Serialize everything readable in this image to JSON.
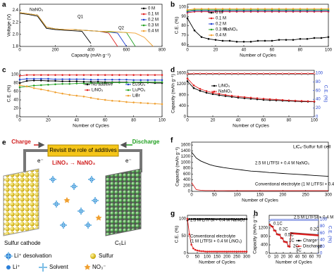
{
  "chart_data": [
    {
      "type": "line",
      "panel": "a",
      "xlabel": "Capacity (mAh g⁻¹)",
      "ylabel": "Voltage (V)",
      "x": [
        0,
        50,
        100,
        150,
        200,
        250,
        300,
        350,
        400,
        450,
        500,
        550,
        600,
        650,
        700,
        750,
        800
      ],
      "xlim": [
        0,
        800
      ],
      "xticks": [
        0,
        200,
        400,
        600,
        800
      ],
      "ylim": [
        1.8,
        2.5
      ],
      "yticks": [
        1.8,
        {
          "value": 2,
          "label": "2.0"
        },
        2.2,
        2.4
      ],
      "markers": false,
      "annotations": [
        "NaNO₃",
        "Q1",
        "Q2"
      ],
      "series": [
        {
          "name": "0 M",
          "color": "#000000",
          "values": [
            2.35,
            2.33,
            2.3,
            2.1,
            2.08,
            2.07,
            2.06,
            2.05,
            1.85,
            null,
            null,
            null,
            null,
            null,
            null,
            null,
            null
          ]
        },
        {
          "name": "0.1 M",
          "color": "#e02020",
          "values": [
            2.36,
            2.34,
            2.32,
            2.12,
            2.09,
            2.08,
            2.08,
            2.07,
            2.06,
            2.05,
            2.02,
            1.8,
            null,
            null,
            null,
            null,
            null
          ]
        },
        {
          "name": "0.2 M",
          "color": "#2040d0",
          "values": [
            2.36,
            2.34,
            2.32,
            2.12,
            2.09,
            2.08,
            2.08,
            2.07,
            2.06,
            2.05,
            2.04,
            2.02,
            1.8,
            null,
            null,
            null,
            null
          ]
        },
        {
          "name": "0.3 M",
          "color": "#20a020",
          "values": [
            2.36,
            2.34,
            2.32,
            2.12,
            2.09,
            2.08,
            2.08,
            2.07,
            2.06,
            2.05,
            2.04,
            2.04,
            2.03,
            1.8,
            null,
            null,
            null
          ]
        },
        {
          "name": "0.4 M",
          "color": "#f0a030",
          "values": [
            2.36,
            2.34,
            2.32,
            2.12,
            2.09,
            2.08,
            2.08,
            2.07,
            2.06,
            2.05,
            2.05,
            2.04,
            2.03,
            2.02,
            1.95,
            1.8,
            null
          ]
        }
      ]
    },
    {
      "type": "line",
      "panel": "b",
      "xlabel": "Number of Cycles",
      "ylabel": "C.E. (%)",
      "x": [
        0,
        5,
        10,
        15,
        20,
        25,
        30,
        35,
        40,
        45,
        50,
        55,
        60,
        65,
        70,
        75,
        80,
        85,
        90,
        95,
        100
      ],
      "xlim": [
        0,
        100
      ],
      "xticks": [
        0,
        20,
        40,
        60,
        80,
        100
      ],
      "ylim": [
        58,
        103
      ],
      "yticks": [
        60,
        70,
        80,
        90,
        100
      ],
      "markers": true,
      "annotations": [
        "NaNO₃"
      ],
      "series": [
        {
          "name": "0 M",
          "color": "#000000",
          "values": [
            88,
            75,
            68,
            66,
            65,
            64,
            64,
            63,
            63,
            63,
            64,
            64,
            64,
            65,
            65,
            65,
            66,
            66,
            67,
            67,
            68
          ]
        },
        {
          "name": "0.1 M",
          "color": "#e02020",
          "values": [
            94,
            95,
            95,
            95,
            95,
            95,
            95,
            95,
            95,
            95,
            95,
            95,
            95,
            95,
            95,
            95,
            95,
            95,
            95,
            95,
            95
          ]
        },
        {
          "name": "0.2 M",
          "color": "#2040d0",
          "values": [
            95,
            96,
            96,
            96,
            96,
            96,
            96,
            96,
            96,
            96,
            96,
            96,
            96,
            96,
            96,
            96,
            96,
            96,
            96,
            96,
            96
          ]
        },
        {
          "name": "0.3 M",
          "color": "#20a020",
          "values": [
            96,
            97,
            97,
            97,
            97,
            97,
            97,
            97,
            97,
            97,
            97,
            97,
            97,
            97,
            97,
            97,
            97,
            97,
            97,
            97,
            97
          ]
        },
        {
          "name": "0.4 M",
          "color": "#f0a030",
          "values": [
            97,
            98,
            98,
            98,
            98,
            98,
            98,
            98,
            98,
            98,
            98,
            98,
            98,
            98,
            98,
            98,
            98,
            98,
            98,
            98,
            98
          ]
        }
      ]
    },
    {
      "type": "line",
      "panel": "c",
      "xlabel": "Number of Cycles",
      "ylabel": "C.E. (%)",
      "x": [
        0,
        5,
        10,
        15,
        20,
        25,
        30,
        35,
        40,
        45,
        50,
        55,
        60,
        65,
        70,
        75,
        80,
        85,
        90,
        95,
        100
      ],
      "xlim": [
        0,
        100
      ],
      "xticks": [
        0,
        20,
        40,
        60,
        80,
        100
      ],
      "ylim": [
        0,
        110
      ],
      "yticks": [
        0,
        20,
        40,
        60,
        80,
        100
      ],
      "markers": true,
      "annotations": [],
      "series": [
        {
          "name": "No additive",
          "color": "#000000",
          "values": [
            80,
            85,
            86,
            86,
            85,
            85,
            84,
            84,
            84,
            83,
            83,
            83,
            82,
            82,
            82,
            82,
            81,
            81,
            81,
            80,
            80
          ]
        },
        {
          "name": "LiNO₃",
          "color": "#e02020",
          "values": [
            97,
            99,
            99,
            99,
            99,
            99,
            99,
            99,
            99,
            99,
            99,
            99,
            99,
            99,
            99,
            99,
            99,
            99,
            99,
            99,
            99
          ]
        },
        {
          "name": "Li₂SO₄",
          "color": "#2040d0",
          "values": [
            88,
            90,
            90,
            90,
            90,
            89,
            89,
            89,
            89,
            89,
            88,
            88,
            88,
            88,
            88,
            88,
            87,
            87,
            87,
            87,
            87
          ]
        },
        {
          "name": "Li₃PO₄",
          "color": "#20a020",
          "values": [
            70,
            72,
            74,
            75,
            76,
            77,
            78,
            78,
            79,
            79,
            80,
            80,
            80,
            81,
            81,
            81,
            82,
            82,
            82,
            82,
            82
          ]
        },
        {
          "name": "LiBr",
          "color": "#f0a030",
          "values": [
            75,
            72,
            68,
            65,
            62,
            58,
            55,
            52,
            50,
            48,
            45,
            42,
            40,
            38,
            37,
            35,
            34,
            33,
            32,
            31,
            30
          ]
        }
      ]
    },
    {
      "type": "line",
      "panel": "d",
      "xlabel": "Number of Cycles",
      "ylabel": "Capacity (mAh g⁻¹)",
      "y2label": "C.E. (%)",
      "x": [
        0,
        5,
        10,
        15,
        20,
        25,
        30,
        35,
        40,
        45,
        50,
        55,
        60,
        65,
        70,
        75,
        80,
        85,
        90,
        95,
        100
      ],
      "xlim": [
        0,
        100
      ],
      "xticks": [
        0,
        20,
        40,
        60,
        80,
        100
      ],
      "ylim": [
        0,
        1700
      ],
      "yticks": [
        0,
        400,
        800,
        1200,
        1600
      ],
      "y2lim": [
        0,
        106.25
      ],
      "y2ticks": [
        0,
        20,
        40,
        60,
        80,
        100
      ],
      "markers": true,
      "annotations": [],
      "series": [
        {
          "name": "LiNO₃",
          "color": "#000000",
          "values": [
            1300,
            1050,
            950,
            880,
            830,
            790,
            760,
            730,
            700,
            680,
            660,
            640,
            620,
            610,
            600,
            590,
            580,
            570,
            560,
            555,
            550
          ]
        },
        {
          "name": "NaNO₃",
          "color": "#e02020",
          "values": [
            1400,
            1150,
            1020,
            940,
            880,
            840,
            800,
            770,
            740,
            720,
            700,
            680,
            660,
            645,
            630,
            615,
            600,
            590,
            580,
            570,
            560
          ]
        },
        {
          "color": "#000000",
          "axis": "y2",
          "values": [
            97,
            98,
            98,
            98,
            98,
            98,
            98,
            98,
            98,
            98,
            98,
            98,
            98,
            98,
            98,
            98,
            98,
            98,
            98,
            98,
            98
          ]
        },
        {
          "color": "#e02020",
          "axis": "y2",
          "values": [
            98,
            99,
            99,
            99,
            99,
            99,
            99,
            99,
            99,
            99,
            99,
            99,
            99,
            99,
            99,
            99,
            99,
            99,
            99,
            99,
            99
          ]
        }
      ]
    },
    {
      "type": "line",
      "panel": "f",
      "xlabel": "Number of Cycles",
      "ylabel": "Capacity (mAh g⁻¹)",
      "x": [
        0,
        10,
        20,
        30,
        40,
        50,
        60,
        70,
        80,
        90,
        100,
        110,
        120,
        130,
        140,
        150,
        160,
        170,
        180,
        190,
        200,
        210,
        220,
        230,
        240,
        250,
        260,
        270,
        280,
        290,
        300
      ],
      "xlim": [
        0,
        300
      ],
      "xticks": [
        0,
        50,
        100,
        150,
        200,
        250,
        300
      ],
      "ylim": [
        0,
        1700
      ],
      "yticks": [
        0,
        200,
        400,
        600,
        800,
        1000,
        1200,
        1400,
        1600
      ],
      "markers": false,
      "annotations": [
        "LiC₆-Sulfur full cell",
        "2.5 M LiTFSI + 0.4 M NaNO₃",
        "Conventional electrolyte (1 M LiTFSI + 0.4 M LiNO₃)"
      ],
      "series": [
        {
          "color": "#000000",
          "values": [
            1350,
            1150,
            1050,
            980,
            920,
            880,
            850,
            820,
            800,
            780,
            760,
            740,
            720,
            700,
            690,
            680,
            665,
            650,
            640,
            630,
            620,
            610,
            600,
            590,
            580,
            570,
            560,
            550,
            540,
            530,
            520
          ]
        },
        {
          "color": "#e02020",
          "values": [
            300,
            60,
            40,
            30,
            28,
            27,
            26,
            26,
            25,
            25,
            25,
            25,
            25,
            25,
            25,
            25,
            25,
            25,
            25,
            25,
            25,
            25,
            25,
            25,
            25,
            25,
            25,
            25,
            25,
            25,
            25
          ]
        }
      ]
    },
    {
      "type": "line",
      "panel": "g",
      "xlabel": "Number of Cycles",
      "ylabel": "C.E. (%)",
      "x": [
        0,
        10,
        20,
        30,
        40,
        50,
        60,
        70,
        80,
        90,
        100,
        110,
        120,
        130,
        140,
        150,
        160,
        170,
        180,
        190,
        200,
        210,
        220,
        230,
        240,
        250,
        260,
        270,
        280,
        290,
        300
      ],
      "xlim": [
        0,
        300
      ],
      "xticks": [
        0,
        50,
        100,
        150,
        200,
        250,
        300
      ],
      "ylim": [
        0,
        110
      ],
      "yticks": [
        0,
        50,
        100
      ],
      "markers": true,
      "annotations": [
        "2.5 M LiTFSI + 0.4 M NaNO₃",
        "Conventional electrolyte",
        "(1 M LiTFSI + 0.4 M LiNO₃)"
      ],
      "series": [
        {
          "color": "#000000",
          "values": [
            95,
            99,
            99,
            99,
            99,
            99,
            99,
            99,
            99,
            99,
            99,
            99,
            99,
            99,
            99,
            99,
            99,
            99,
            99,
            99,
            99,
            99,
            99,
            99,
            99,
            99,
            99,
            99,
            99,
            99,
            99
          ]
        },
        {
          "color": "#e02020",
          "values": [
            100,
            55,
            25,
            14,
            10,
            8,
            7,
            6,
            6,
            5,
            5,
            5,
            5,
            5,
            5,
            5,
            5,
            5,
            5,
            5,
            5,
            5,
            5,
            5,
            5,
            5,
            5,
            5,
            5,
            5,
            5
          ]
        }
      ]
    },
    {
      "type": "line",
      "panel": "h",
      "xlabel": "Number of Cycles",
      "ylabel": "Capacity (mAh g⁻¹)",
      "y2label": "C.E. (%)",
      "x": [
        1,
        3,
        5,
        7,
        9,
        11,
        13,
        15,
        17,
        19,
        21,
        23,
        25,
        27,
        29,
        31,
        33,
        35,
        37,
        39,
        41,
        43,
        45,
        47,
        49,
        51,
        53,
        55,
        57,
        59,
        61,
        63,
        65,
        67,
        69
      ],
      "xlim": [
        0,
        70
      ],
      "xticks": [
        0,
        10,
        20,
        30,
        40,
        50,
        60,
        70
      ],
      "ylim": [
        0,
        1800
      ],
      "yticks": [
        0,
        400,
        800,
        1200
      ],
      "y2lim": [
        0,
        112.5
      ],
      "y2ticks": [
        0,
        20,
        40,
        60,
        80,
        100
      ],
      "markers": true,
      "annotations": [
        "2.5 M LiTFSI + 0.4 M NaNO₃",
        "0.1C",
        "0.2C",
        "0.5C",
        "1C",
        "2C",
        "3C",
        "0.2C"
      ],
      "series": [
        {
          "name": "Charge",
          "color": "#000000",
          "values": [
            1360,
            1290,
            1260,
            1090,
            1070,
            910,
            890,
            880,
            730,
            710,
            560,
            540,
            530,
            340,
            320,
            960,
            950,
            945,
            940,
            935,
            930,
            925,
            920,
            915,
            910,
            905,
            900,
            895,
            890,
            885,
            880,
            875,
            870,
            865,
            860
          ]
        },
        {
          "name": "Discharge",
          "color": "#e02020",
          "values": [
            1350,
            1280,
            1250,
            1080,
            1060,
            900,
            880,
            870,
            720,
            700,
            550,
            530,
            520,
            330,
            310,
            950,
            940,
            935,
            930,
            925,
            920,
            915,
            910,
            905,
            900,
            895,
            890,
            885,
            880,
            875,
            870,
            865,
            860,
            855,
            850
          ]
        },
        {
          "color": "#2040d0",
          "axis": "y2",
          "values": [
            97,
            99,
            99,
            99,
            99,
            99,
            99,
            99,
            99,
            99,
            99,
            99,
            99,
            99,
            99,
            99,
            99,
            99,
            99,
            99,
            99,
            99,
            99,
            99,
            99,
            99,
            99,
            99,
            99,
            99,
            99,
            99,
            99,
            99,
            99
          ]
        }
      ]
    }
  ],
  "diagram": {
    "panel": "e",
    "charge": "Charge",
    "discharge": "Discharge",
    "top_label": "Revisit the role of additives",
    "electron_left": "e⁻",
    "electron_right": "e⁻",
    "reaction": "LiNO₃ → NaNO₃",
    "cathode": "Sulfur cathode",
    "anode": "C₆Li",
    "legend": [
      "Li⁺ desolvation",
      "Sulfur",
      "Li⁺",
      "Solvent",
      "NO₃⁻"
    ]
  }
}
